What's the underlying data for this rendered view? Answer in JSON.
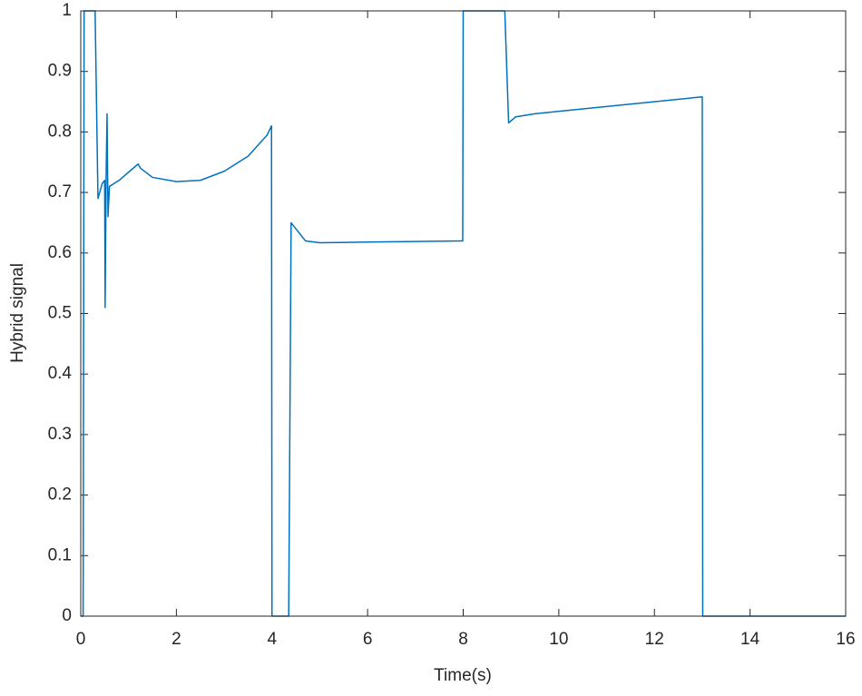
{
  "chart_data": {
    "type": "line",
    "xlabel": "Time(s)",
    "ylabel": "Hybrid signal",
    "xlim": [
      0,
      16
    ],
    "ylim": [
      0,
      1
    ],
    "xticks": [
      0,
      2,
      4,
      6,
      8,
      10,
      12,
      14,
      16
    ],
    "yticks": [
      0,
      0.1,
      0.2,
      0.3,
      0.4,
      0.5,
      0.6,
      0.7,
      0.8,
      0.9,
      1
    ],
    "grid": false,
    "series": [
      {
        "color": "#0072bd",
        "x": [
          0,
          0.05,
          0.07,
          0.3,
          0.36,
          0.45,
          0.5,
          0.51,
          0.53,
          0.55,
          0.57,
          0.6,
          0.8,
          1.2,
          1.25,
          1.5,
          2,
          2.5,
          3,
          3.5,
          3.9,
          3.99,
          4.0,
          4.35,
          4.4,
          4.7,
          5,
          6,
          7.99,
          8.0,
          8.87,
          8.95,
          9.1,
          9.5,
          13.0,
          13.01,
          16
        ],
        "values": [
          0,
          0,
          1,
          1,
          0.69,
          0.715,
          0.72,
          0.51,
          0.72,
          0.83,
          0.66,
          0.71,
          0.72,
          0.747,
          0.74,
          0.725,
          0.718,
          0.72,
          0.735,
          0.76,
          0.795,
          0.81,
          0,
          0,
          0.65,
          0.62,
          0.617,
          0.618,
          0.62,
          1,
          1,
          0.815,
          0.825,
          0.83,
          0.858,
          0,
          0
        ]
      }
    ]
  }
}
